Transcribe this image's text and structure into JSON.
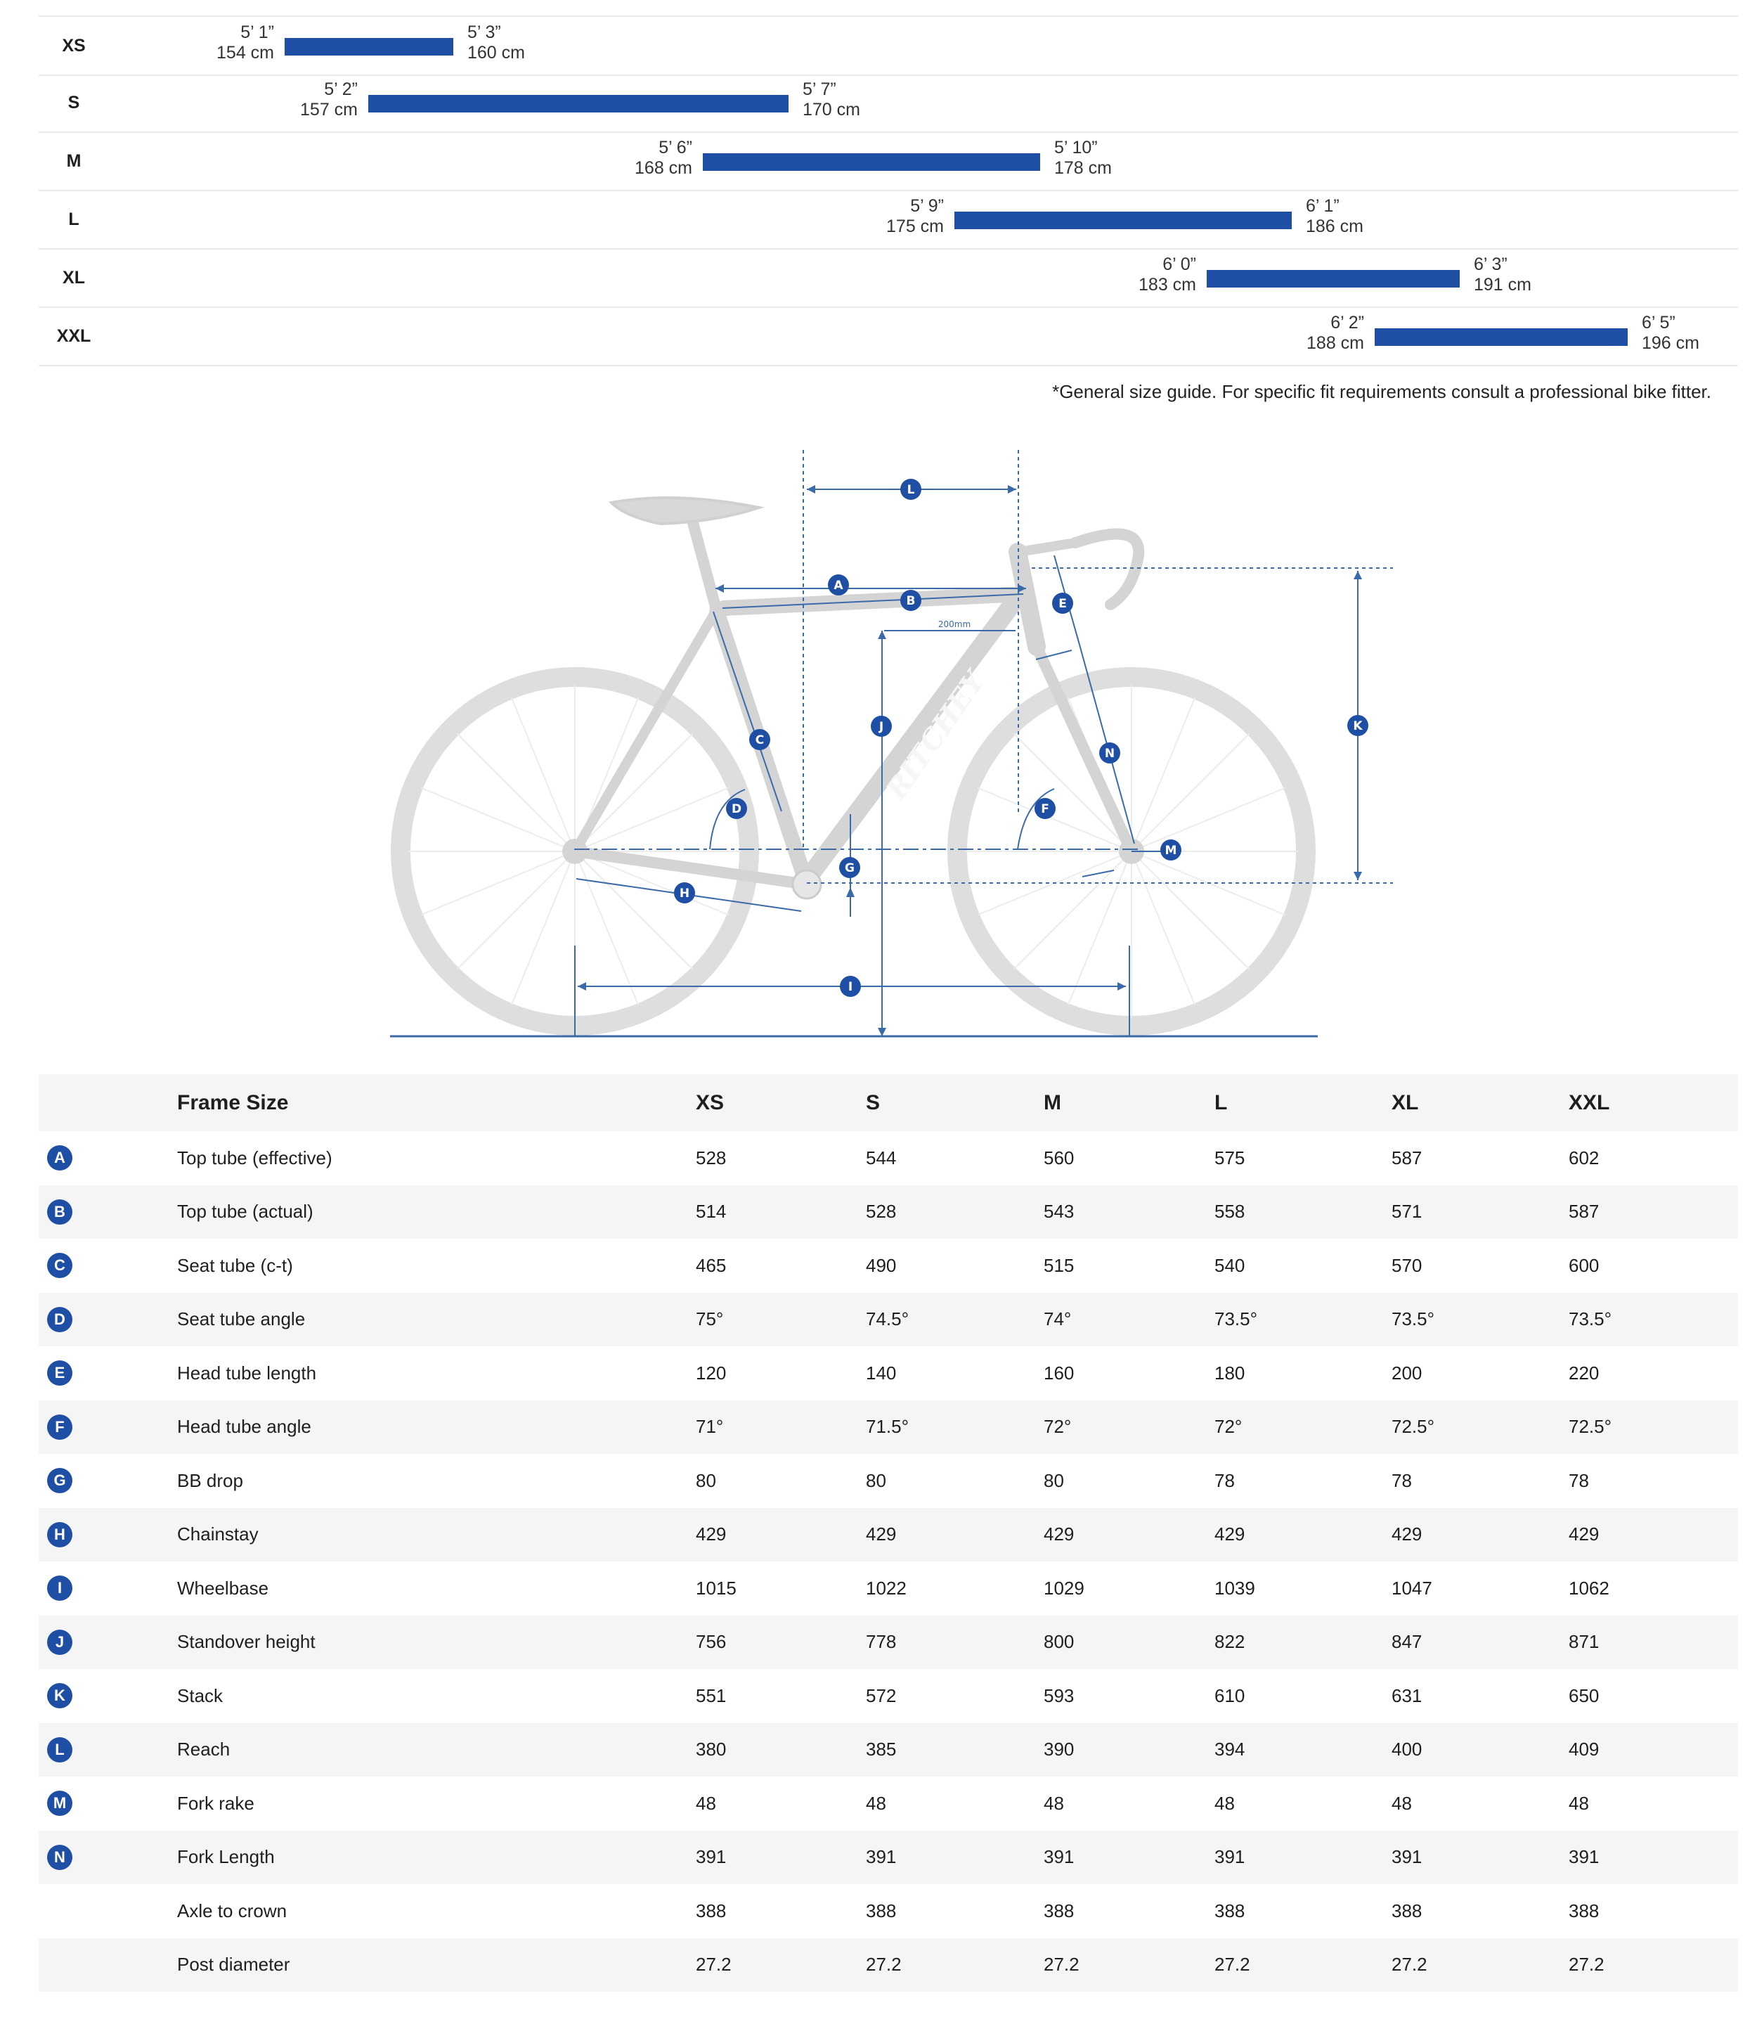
{
  "size_guide": {
    "rows": [
      {
        "size": "XS",
        "min_ft": "5’ 1”",
        "min_cm": "154 cm",
        "max_ft": "5’ 3”",
        "max_cm": "160 cm"
      },
      {
        "size": "S",
        "min_ft": "5’ 2”",
        "min_cm": "157 cm",
        "max_ft": "5’ 7”",
        "max_cm": "170 cm"
      },
      {
        "size": "M",
        "min_ft": "5’ 6”",
        "min_cm": "168 cm",
        "max_ft": "5’ 10”",
        "max_cm": "178 cm"
      },
      {
        "size": "L",
        "min_ft": "5’ 9”",
        "min_cm": "175 cm",
        "max_ft": "6’ 1”",
        "max_cm": "186 cm"
      },
      {
        "size": "XL",
        "min_ft": "6’ 0”",
        "min_cm": "183 cm",
        "max_ft": "6’ 3”",
        "max_cm": "191 cm"
      },
      {
        "size": "XXL",
        "min_ft": "6’ 2”",
        "min_cm": "188 cm",
        "max_ft": "6’ 5”",
        "max_cm": "196 cm"
      }
    ],
    "note": "*General size guide. For specific fit requirements consult a professional bike fitter."
  },
  "diagram": {
    "brand": "RITCHEY",
    "dimension_label": "200mm",
    "markers": [
      "A",
      "B",
      "C",
      "D",
      "E",
      "F",
      "G",
      "H",
      "I",
      "J",
      "K",
      "L",
      "M",
      "N"
    ],
    "accent_color": "#1f4fa5",
    "frame_color": "#d4d4d4"
  },
  "geometry": {
    "header": {
      "label": "Frame Size",
      "sizes": [
        "XS",
        "S",
        "M",
        "L",
        "XL",
        "XXL"
      ]
    },
    "rows": [
      {
        "key": "A",
        "name": "Top tube (effective)",
        "values": [
          "528",
          "544",
          "560",
          "575",
          "587",
          "602"
        ]
      },
      {
        "key": "B",
        "name": "Top tube (actual)",
        "values": [
          "514",
          "528",
          "543",
          "558",
          "571",
          "587"
        ]
      },
      {
        "key": "C",
        "name": "Seat tube (c-t)",
        "values": [
          "465",
          "490",
          "515",
          "540",
          "570",
          "600"
        ]
      },
      {
        "key": "D",
        "name": "Seat tube angle",
        "values": [
          "75°",
          "74.5°",
          "74°",
          "73.5°",
          "73.5°",
          "73.5°"
        ]
      },
      {
        "key": "E",
        "name": "Head tube length",
        "values": [
          "120",
          "140",
          "160",
          "180",
          "200",
          "220"
        ]
      },
      {
        "key": "F",
        "name": "Head tube angle",
        "values": [
          "71°",
          "71.5°",
          "72°",
          "72°",
          "72.5°",
          "72.5°"
        ]
      },
      {
        "key": "G",
        "name": "BB drop",
        "values": [
          "80",
          "80",
          "80",
          "78",
          "78",
          "78"
        ]
      },
      {
        "key": "H",
        "name": "Chainstay",
        "values": [
          "429",
          "429",
          "429",
          "429",
          "429",
          "429"
        ]
      },
      {
        "key": "I",
        "name": "Wheelbase",
        "values": [
          "1015",
          "1022",
          "1029",
          "1039",
          "1047",
          "1062"
        ]
      },
      {
        "key": "J",
        "name": "Standover height",
        "values": [
          "756",
          "778",
          "800",
          "822",
          "847",
          "871"
        ]
      },
      {
        "key": "K",
        "name": "Stack",
        "values": [
          "551",
          "572",
          "593",
          "610",
          "631",
          "650"
        ]
      },
      {
        "key": "L",
        "name": "Reach",
        "values": [
          "380",
          "385",
          "390",
          "394",
          "400",
          "409"
        ]
      },
      {
        "key": "M",
        "name": "Fork rake",
        "values": [
          "48",
          "48",
          "48",
          "48",
          "48",
          "48"
        ]
      },
      {
        "key": "N",
        "name": "Fork Length",
        "values": [
          "391",
          "391",
          "391",
          "391",
          "391",
          "391"
        ]
      },
      {
        "key": "",
        "name": "Axle to crown",
        "values": [
          "388",
          "388",
          "388",
          "388",
          "388",
          "388"
        ]
      },
      {
        "key": "",
        "name": "Post diameter",
        "values": [
          "27.2",
          "27.2",
          "27.2",
          "27.2",
          "27.2",
          "27.2"
        ]
      }
    ]
  }
}
